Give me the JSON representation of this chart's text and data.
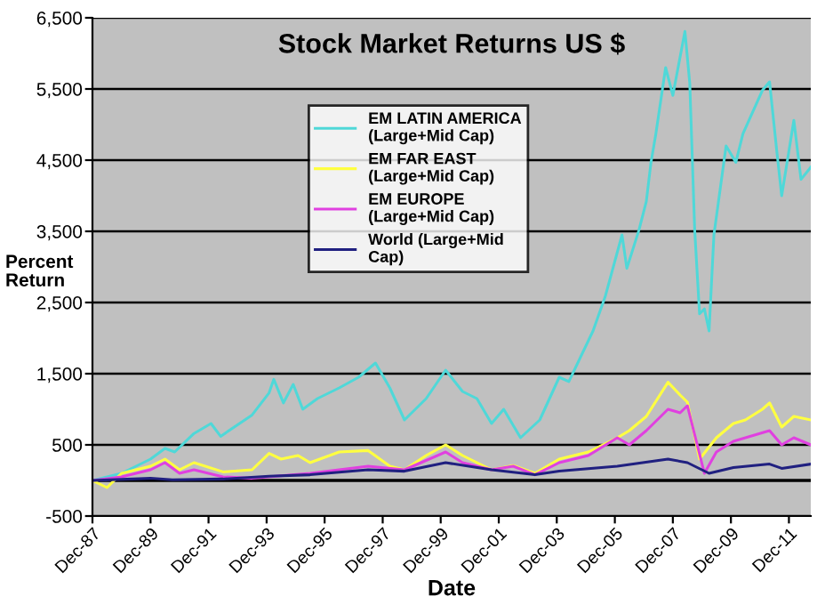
{
  "chart_data": {
    "type": "line",
    "title": "Stock Market Returns US $",
    "xlabel": "Date",
    "ylabel": "Percent Return",
    "xlim": [
      "1987-12",
      "2012-09"
    ],
    "xticks": [
      {
        "value": "1987-12",
        "label": "Dec-87"
      },
      {
        "value": "1989-12",
        "label": "Dec-89"
      },
      {
        "value": "1991-12",
        "label": "Dec-91"
      },
      {
        "value": "1993-12",
        "label": "Dec-93"
      },
      {
        "value": "1995-12",
        "label": "Dec-95"
      },
      {
        "value": "1997-12",
        "label": "Dec-97"
      },
      {
        "value": "1999-12",
        "label": "Dec-99"
      },
      {
        "value": "2001-12",
        "label": "Dec-01"
      },
      {
        "value": "2003-12",
        "label": "Dec-03"
      },
      {
        "value": "2005-12",
        "label": "Dec-05"
      },
      {
        "value": "2007-12",
        "label": "Dec-07"
      },
      {
        "value": "2009-12",
        "label": "Dec-09"
      },
      {
        "value": "2011-12",
        "label": "Dec-11"
      }
    ],
    "ylim": [
      -500,
      6500
    ],
    "yticks": [
      -500,
      500,
      {
        "value": 1500,
        "label": "1,500"
      },
      {
        "value": 2500,
        "label": "2,500"
      },
      {
        "value": 3500,
        "label": "3,500"
      },
      {
        "value": 4500,
        "label": "4,500"
      },
      {
        "value": 5500,
        "label": "5,500"
      },
      {
        "value": 6500,
        "label": "6,500"
      }
    ],
    "grid": "y",
    "legend": "top",
    "marker": "none",
    "line_style": "solid",
    "ref_lines": [
      {
        "axis": "y",
        "value": 0,
        "color": "#000000"
      }
    ],
    "series": [
      {
        "name": "EM LATIN AMERICA (Large+Mid Cap)",
        "color": "#4fd8d8",
        "x": [
          "1987-12",
          "1988-12",
          "1989-12",
          "1990-06",
          "1990-10",
          "1991-06",
          "1992-01",
          "1992-05",
          "1993-06",
          "1994-01",
          "1994-03",
          "1994-07",
          "1994-11",
          "1995-03",
          "1995-09",
          "1996-06",
          "1997-02",
          "1997-09",
          "1998-03",
          "1998-09",
          "1999-06",
          "2000-02",
          "2000-09",
          "2001-03",
          "2001-09",
          "2002-02",
          "2002-09",
          "2003-05",
          "2004-01",
          "2004-05",
          "2005-03",
          "2005-08",
          "2006-03",
          "2006-05",
          "2006-10",
          "2007-01",
          "2007-03",
          "2007-05",
          "2007-09",
          "2007-12",
          "2008-05",
          "2008-07",
          "2008-09",
          "2008-11",
          "2009-01",
          "2009-03",
          "2009-05",
          "2009-10",
          "2010-02",
          "2010-05",
          "2011-01",
          "2011-04",
          "2011-07",
          "2011-09",
          "2012-02",
          "2012-05",
          "2012-09"
        ],
        "values": [
          0,
          100,
          300,
          450,
          400,
          660,
          800,
          620,
          920,
          1230,
          1420,
          1090,
          1350,
          1000,
          1150,
          1300,
          1450,
          1650,
          1300,
          850,
          1150,
          1550,
          1250,
          1150,
          800,
          1000,
          600,
          850,
          1450,
          1390,
          2100,
          2580,
          3450,
          2980,
          3520,
          3920,
          4470,
          4870,
          5800,
          5410,
          6310,
          5580,
          3520,
          2340,
          2410,
          2100,
          3450,
          4700,
          4470,
          4870,
          5480,
          5600,
          4630,
          4000,
          5060,
          4230,
          4400
        ]
      },
      {
        "name": "EM FAR EAST (Large+Mid Cap)",
        "color": "#ffff40",
        "x": [
          "1987-12",
          "1988-06",
          "1988-12",
          "1989-12",
          "1990-06",
          "1990-12",
          "1991-06",
          "1992-06",
          "1993-06",
          "1994-01",
          "1994-06",
          "1995-01",
          "1995-06",
          "1996-06",
          "1997-06",
          "1998-03",
          "1998-09",
          "1999-06",
          "2000-02",
          "2000-09",
          "2001-09",
          "2002-06",
          "2003-03",
          "2004-01",
          "2005-01",
          "2006-01",
          "2006-06",
          "2007-01",
          "2007-10",
          "2008-03",
          "2008-06",
          "2008-11",
          "2009-06",
          "2010-01",
          "2010-06",
          "2011-01",
          "2011-04",
          "2011-09",
          "2012-02",
          "2012-09"
        ],
        "values": [
          0,
          -100,
          100,
          200,
          300,
          150,
          250,
          120,
          150,
          380,
          300,
          350,
          250,
          400,
          420,
          200,
          150,
          350,
          500,
          350,
          150,
          210,
          100,
          300,
          400,
          600,
          700,
          900,
          1380,
          1200,
          1100,
          300,
          600,
          800,
          850,
          1000,
          1090,
          750,
          900,
          850
        ]
      },
      {
        "name": "EM EUROPE (Large+Mid Cap)",
        "color": "#e040e0",
        "x": [
          "1987-12",
          "1988-12",
          "1989-12",
          "1990-06",
          "1990-12",
          "1991-06",
          "1992-06",
          "1993-06",
          "1995-06",
          "1997-06",
          "1998-09",
          "2000-02",
          "2000-09",
          "2001-09",
          "2002-06",
          "2003-03",
          "2004-01",
          "2005-01",
          "2006-01",
          "2006-06",
          "2007-01",
          "2007-10",
          "2008-03",
          "2008-06",
          "2009-01",
          "2009-06",
          "2010-01",
          "2011-04",
          "2011-09",
          "2012-02",
          "2012-09"
        ],
        "values": [
          0,
          50,
          150,
          250,
          100,
          150,
          50,
          30,
          100,
          200,
          150,
          400,
          250,
          150,
          200,
          80,
          250,
          350,
          600,
          500,
          700,
          1000,
          950,
          1050,
          100,
          400,
          550,
          700,
          500,
          600,
          500
        ]
      },
      {
        "name": "World (Large+Mid Cap)",
        "color": "#202080",
        "x": [
          "1987-12",
          "1989-12",
          "1990-09",
          "1992-06",
          "1994-01",
          "1995-06",
          "1997-06",
          "1998-09",
          "2000-02",
          "2001-09",
          "2003-03",
          "2004-01",
          "2006-01",
          "2007-10",
          "2008-06",
          "2009-03",
          "2010-01",
          "2011-04",
          "2011-09",
          "2012-09"
        ],
        "values": [
          0,
          30,
          10,
          20,
          60,
          80,
          150,
          130,
          250,
          150,
          80,
          130,
          200,
          300,
          250,
          100,
          180,
          230,
          170,
          230
        ]
      }
    ]
  }
}
